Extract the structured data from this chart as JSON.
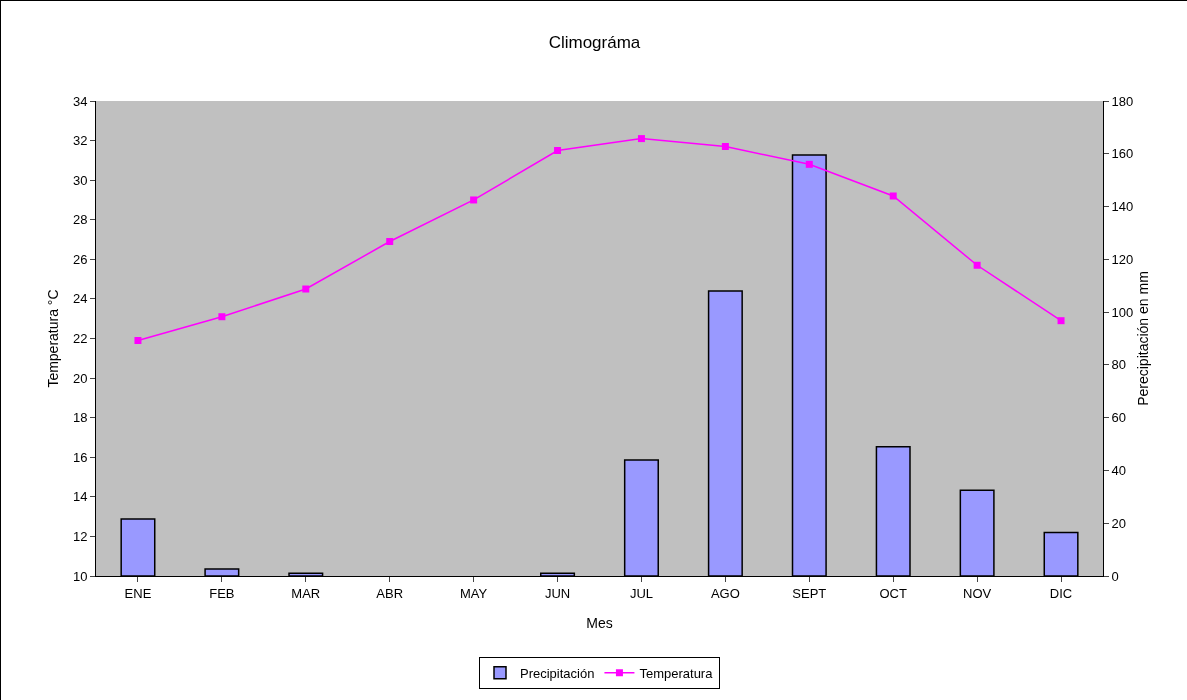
{
  "chart_data": {
    "type": "bar",
    "title": "Climográma",
    "xlabel": "Mes",
    "ylabel": "Temperatura °C",
    "y2label": "Perecipitación en mm",
    "categories": [
      "ENE",
      "FEB",
      "MAR",
      "ABR",
      "MAY",
      "JUN",
      "JUL",
      "AGO",
      "SEPT",
      "OCT",
      "NOV",
      "DIC"
    ],
    "series": [
      {
        "name": "Precipitación",
        "axis": "y2",
        "color": "#9999ff",
        "values": [
          21.6,
          2.7,
          1,
          0,
          0,
          1,
          44,
          108,
          159.5,
          49,
          32.5,
          16.5
        ]
      },
      {
        "name": "Temperatura",
        "type": "line",
        "axis": "y",
        "color": "#ff00ff",
        "values": [
          21.9,
          23.1,
          24.5,
          26.9,
          29.0,
          31.5,
          32.1,
          31.7,
          30.8,
          29.2,
          25.7,
          22.9
        ]
      }
    ],
    "ylim": [
      10,
      34
    ],
    "yticks": [
      10,
      12,
      14,
      16,
      18,
      20,
      22,
      24,
      26,
      28,
      30,
      32,
      34
    ],
    "y2lim": [
      0,
      180
    ],
    "y2ticks": [
      0,
      20,
      40,
      60,
      80,
      100,
      120,
      140,
      160,
      180
    ],
    "grid": false,
    "legend": "bottom",
    "marker": "square",
    "line_style": "solid"
  }
}
